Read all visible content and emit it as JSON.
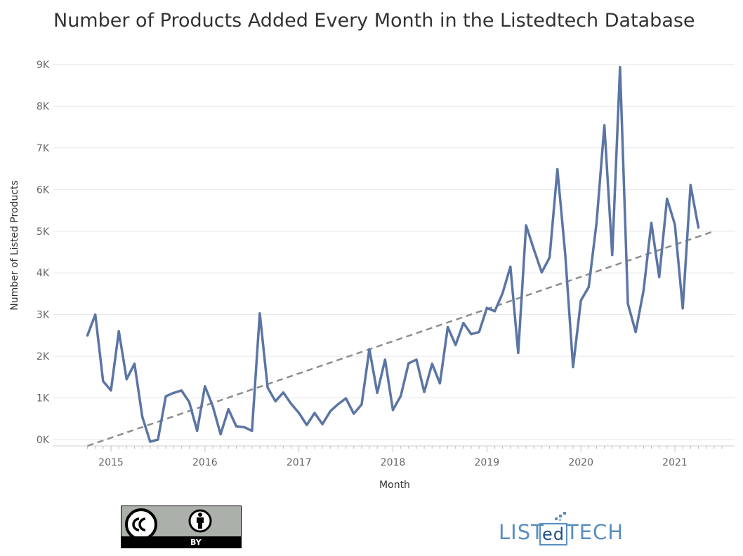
{
  "title": "Number of Products Added Every Month in the Listedtech Database",
  "colors": {
    "line": "#5b75a4",
    "trend": "#8e8e8e",
    "grid": "#e6e6e6"
  },
  "badge": {
    "label": "BY",
    "icons": [
      "cc-icon",
      "person-icon"
    ]
  },
  "logo": {
    "left": "LIST",
    "mid": "ed",
    "right": "TECH"
  },
  "chart_data": {
    "type": "line",
    "xlabel": "Month",
    "ylabel": "Number of Listed Products",
    "ylim": [
      0,
      9000
    ],
    "yticks": [
      0,
      1000,
      2000,
      3000,
      4000,
      5000,
      6000,
      7000,
      8000,
      9000
    ],
    "ytick_labels": [
      "0K",
      "1K",
      "2K",
      "3K",
      "4K",
      "5K",
      "6K",
      "7K",
      "8K",
      "9K"
    ],
    "xticks": [
      "2015",
      "2016",
      "2017",
      "2018",
      "2019",
      "2020",
      "2021"
    ],
    "grid": true,
    "trendline": {
      "style": "dashed",
      "start": [
        "2014-10",
        -150
      ],
      "end": [
        "2021-06",
        5000
      ]
    },
    "series": [
      {
        "x": [
          "2014-10",
          "2014-11",
          "2014-12",
          "2015-01",
          "2015-02",
          "2015-03",
          "2015-04",
          "2015-05",
          "2015-06",
          "2015-07",
          "2015-08",
          "2015-09",
          "2015-10",
          "2015-11",
          "2015-12",
          "2016-01",
          "2016-02",
          "2016-03",
          "2016-04",
          "2016-05",
          "2016-06",
          "2016-07",
          "2016-08",
          "2016-09",
          "2016-10",
          "2016-11",
          "2016-12",
          "2017-01",
          "2017-02",
          "2017-03",
          "2017-04",
          "2017-05",
          "2017-06",
          "2017-07",
          "2017-08",
          "2017-09",
          "2017-10",
          "2017-11",
          "2017-12",
          "2018-01",
          "2018-02",
          "2018-03",
          "2018-04",
          "2018-05",
          "2018-06",
          "2018-07",
          "2018-08",
          "2018-09",
          "2018-10",
          "2018-11",
          "2018-12",
          "2019-01",
          "2019-02",
          "2019-03",
          "2019-04",
          "2019-05",
          "2019-06",
          "2019-07",
          "2019-08",
          "2019-09",
          "2019-10",
          "2019-11",
          "2019-12",
          "2020-01",
          "2020-02",
          "2020-03",
          "2020-04",
          "2020-05",
          "2020-06",
          "2020-07",
          "2020-08",
          "2020-09",
          "2020-10",
          "2020-11",
          "2020-12",
          "2021-01",
          "2021-02",
          "2021-03",
          "2021-04"
        ],
        "values": [
          2500,
          3000,
          1400,
          1180,
          2600,
          1450,
          1820,
          550,
          -50,
          0,
          1040,
          1120,
          1180,
          900,
          210,
          1280,
          800,
          130,
          730,
          320,
          300,
          210,
          3030,
          1250,
          920,
          1130,
          860,
          640,
          350,
          640,
          370,
          680,
          850,
          990,
          620,
          840,
          2170,
          1120,
          1920,
          710,
          1050,
          1830,
          1920,
          1140,
          1820,
          1350,
          2700,
          2270,
          2800,
          2530,
          2580,
          3160,
          3080,
          3510,
          4150,
          2080,
          5140,
          4560,
          4010,
          4370,
          6490,
          4440,
          1740,
          3340,
          3660,
          5210,
          7540,
          4430,
          8940,
          3260,
          2580,
          3580,
          5200,
          3900,
          5780,
          5160,
          3150,
          6110,
          5090
        ]
      }
    ]
  }
}
